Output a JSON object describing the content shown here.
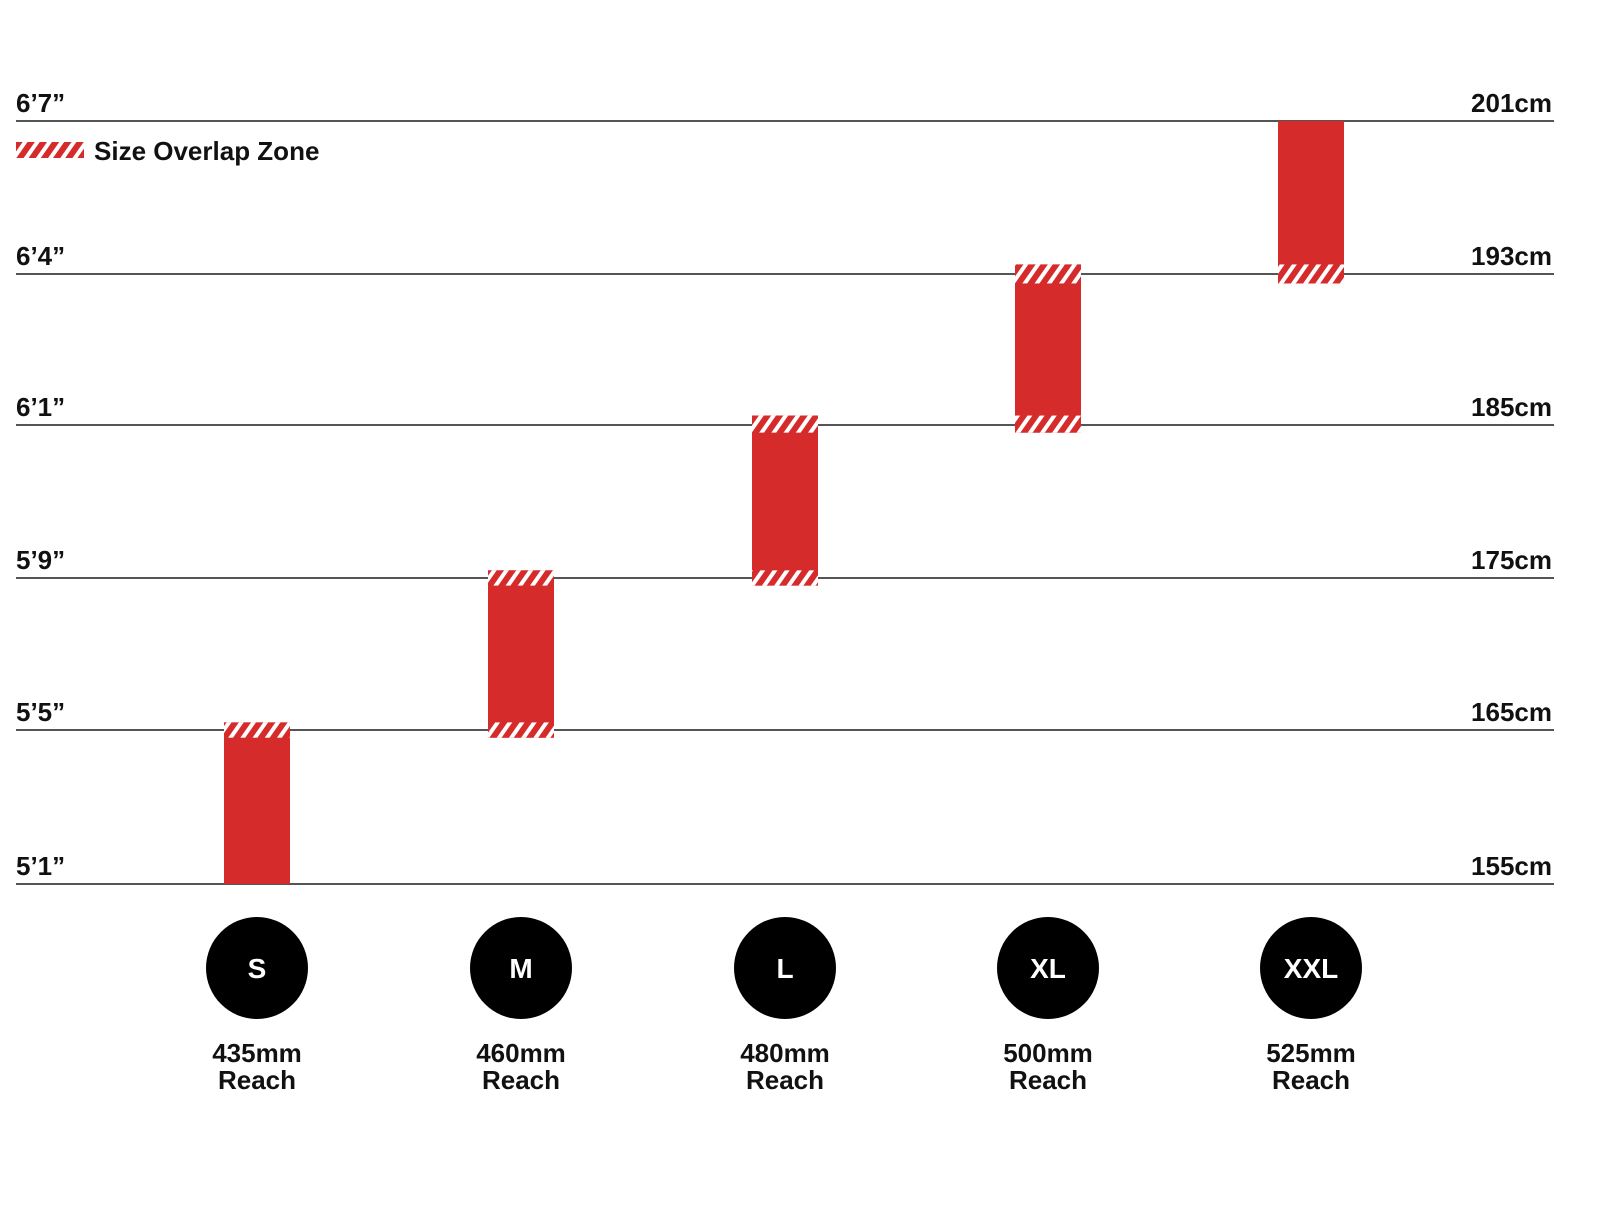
{
  "chart_data": {
    "type": "bar",
    "legend": {
      "label": "Size Overlap Zone",
      "placement": "top-left"
    },
    "y_axis_left_ticks": [
      "5’1”",
      "5’5”",
      "5’9”",
      "6’1”",
      "6’4”",
      "6’7”"
    ],
    "y_axis_right_ticks": [
      "155cm",
      "165cm",
      "175cm",
      "185cm",
      "193cm",
      "201cm"
    ],
    "ylim": [
      155,
      201
    ],
    "grid": true,
    "categories": [
      "S",
      "M",
      "L",
      "XL",
      "XXL"
    ],
    "reach_labels": [
      "435mm",
      "460mm",
      "480mm",
      "500mm",
      "525mm"
    ],
    "reach_word": "Reach",
    "ranges_cm": [
      {
        "size": "S",
        "low": 155,
        "high": 165
      },
      {
        "size": "M",
        "low": 165,
        "high": 175
      },
      {
        "size": "L",
        "low": 175,
        "high": 185
      },
      {
        "size": "XL",
        "low": 185,
        "high": 193
      },
      {
        "size": "XXL",
        "low": 193,
        "high": 201
      }
    ],
    "overlap_zone_cm": 1
  },
  "colors": {
    "bar": "#d52b2b",
    "stripe": "#ffffff",
    "gridline": "#555555",
    "circle": "#000000",
    "circle_text": "#ffffff",
    "text": "#111111"
  }
}
